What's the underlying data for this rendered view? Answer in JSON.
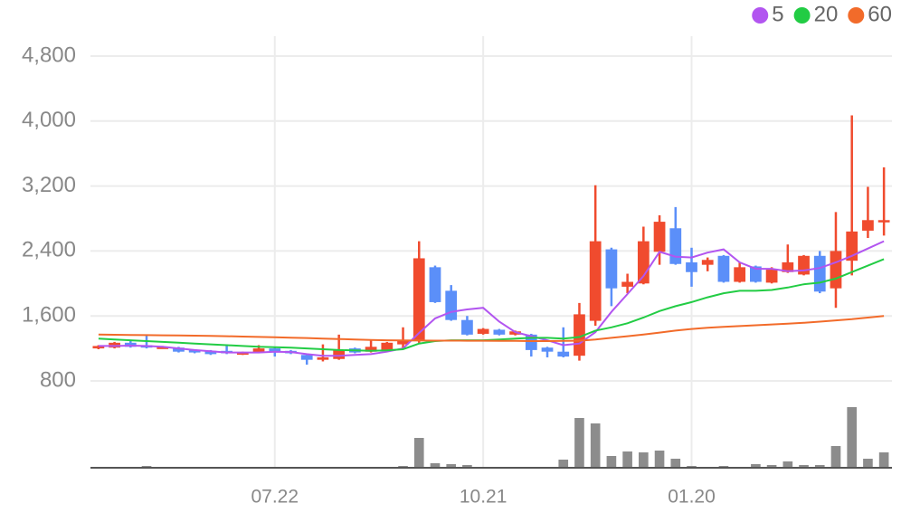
{
  "chart_data": {
    "type": "candlestick",
    "categories": [
      null,
      null,
      null,
      null,
      null,
      null,
      null,
      null,
      null,
      null,
      null,
      "07.22",
      null,
      null,
      null,
      null,
      null,
      null,
      null,
      null,
      null,
      null,
      null,
      null,
      "10.21",
      null,
      null,
      null,
      null,
      null,
      null,
      null,
      null,
      null,
      null,
      null,
      null,
      "01.20",
      null,
      null,
      null,
      null,
      null,
      null,
      null,
      null,
      null,
      null,
      null,
      null
    ],
    "open": [
      1200,
      1210,
      1270,
      1240,
      1210,
      1210,
      1180,
      1170,
      1170,
      1130,
      1150,
      1200,
      1170,
      1120,
      1060,
      1070,
      1200,
      1160,
      1180,
      1250,
      1300,
      2200,
      1910,
      1550,
      1380,
      1430,
      1370,
      1370,
      1210,
      1160,
      1110,
      1540,
      2420,
      1960,
      2000,
      2390,
      2680,
      2260,
      2230,
      2340,
      2020,
      2210,
      2010,
      2140,
      2110,
      2340,
      1940,
      2280,
      2650,
      2770
    ],
    "high": [
      1240,
      1280,
      1300,
      1370,
      1230,
      1220,
      1190,
      1180,
      1250,
      1160,
      1240,
      1210,
      1180,
      1130,
      1250,
      1370,
      1210,
      1300,
      1280,
      1460,
      2520,
      2220,
      1980,
      1600,
      1450,
      1440,
      1420,
      1380,
      1220,
      1460,
      1760,
      3210,
      2440,
      2120,
      2700,
      2840,
      2940,
      2440,
      2320,
      2350,
      2260,
      2220,
      2200,
      2480,
      2350,
      2400,
      2880,
      4070,
      3190,
      3430
    ],
    "low": [
      1190,
      1200,
      1210,
      1200,
      1200,
      1150,
      1140,
      1120,
      1130,
      1120,
      1140,
      1100,
      1130,
      1000,
      1040,
      1060,
      1140,
      1150,
      1170,
      1190,
      1270,
      1760,
      1540,
      1360,
      1370,
      1360,
      1360,
      1100,
      1090,
      1090,
      1050,
      1480,
      1720,
      1880,
      1990,
      2230,
      2230,
      1960,
      2150,
      2010,
      2010,
      2010,
      2000,
      2130,
      2100,
      1880,
      1700,
      2100,
      2560,
      2590
    ],
    "close": [
      1230,
      1270,
      1220,
      1210,
      1220,
      1160,
      1150,
      1130,
      1140,
      1150,
      1200,
      1160,
      1140,
      1060,
      1090,
      1180,
      1150,
      1220,
      1270,
      1300,
      2310,
      1770,
      1550,
      1370,
      1440,
      1370,
      1410,
      1180,
      1160,
      1100,
      1620,
      2520,
      1940,
      2020,
      2520,
      2760,
      2240,
      2140,
      2290,
      2020,
      2200,
      2020,
      2170,
      2260,
      2340,
      1900,
      2400,
      2640,
      2780,
      2780
    ],
    "volume": [
      1,
      1,
      1,
      2,
      1,
      1,
      1,
      1,
      1,
      1,
      1,
      1,
      1,
      1,
      1,
      1,
      1,
      1,
      1,
      2,
      33,
      5,
      4,
      3,
      1,
      1,
      1,
      1,
      1,
      9,
      55,
      49,
      13,
      18,
      17,
      19,
      10,
      2,
      1,
      2,
      1,
      4,
      3,
      7,
      3,
      3,
      24,
      67,
      10,
      17
    ],
    "up_color": "#f04b2e",
    "down_color": "#5b8ff9",
    "volume_color": "#8c8c8c",
    "series": [
      {
        "name": "5",
        "color": "#b255f0",
        "values": [
          1230,
          1230,
          1235,
          1230,
          1220,
          1200,
          1180,
          1165,
          1150,
          1150,
          1150,
          1160,
          1155,
          1130,
          1110,
          1110,
          1120,
          1130,
          1160,
          1200,
          1390,
          1570,
          1650,
          1680,
          1700,
          1530,
          1400,
          1350,
          1300,
          1240,
          1260,
          1400,
          1650,
          1870,
          2090,
          2390,
          2330,
          2320,
          2380,
          2420,
          2260,
          2180,
          2180,
          2150,
          2160,
          2190,
          2260,
          2340,
          2430,
          2520
        ]
      },
      {
        "name": "20",
        "color": "#22cc44",
        "values": [
          1320,
          1310,
          1300,
          1290,
          1280,
          1270,
          1260,
          1250,
          1240,
          1230,
          1220,
          1215,
          1210,
          1200,
          1190,
          1180,
          1175,
          1170,
          1175,
          1190,
          1260,
          1290,
          1300,
          1300,
          1300,
          1310,
          1320,
          1330,
          1330,
          1320,
          1340,
          1420,
          1460,
          1510,
          1580,
          1660,
          1720,
          1770,
          1830,
          1880,
          1910,
          1910,
          1920,
          1950,
          1990,
          2010,
          2060,
          2140,
          2220,
          2300
        ]
      },
      {
        "name": "60",
        "color": "#f26b2a",
        "values": [
          1370,
          1368,
          1366,
          1364,
          1362,
          1360,
          1357,
          1354,
          1350,
          1346,
          1342,
          1338,
          1333,
          1328,
          1322,
          1316,
          1310,
          1304,
          1300,
          1298,
          1297,
          1296,
          1296,
          1295,
          1295,
          1294,
          1292,
          1290,
          1290,
          1292,
          1295,
          1310,
          1330,
          1350,
          1370,
          1395,
          1420,
          1440,
          1455,
          1465,
          1475,
          1485,
          1495,
          1505,
          1515,
          1530,
          1545,
          1560,
          1580,
          1600
        ]
      }
    ],
    "ylim": [
      800,
      4800
    ],
    "yticks": [
      800,
      {
        "value": 1600,
        "label": "1,600"
      },
      {
        "value": 2400,
        "label": "2,400"
      },
      {
        "value": 3200,
        "label": "3,200"
      },
      {
        "value": 4000,
        "label": "4,000"
      },
      {
        "value": 4800,
        "label": "4,800"
      }
    ],
    "grid": true
  }
}
